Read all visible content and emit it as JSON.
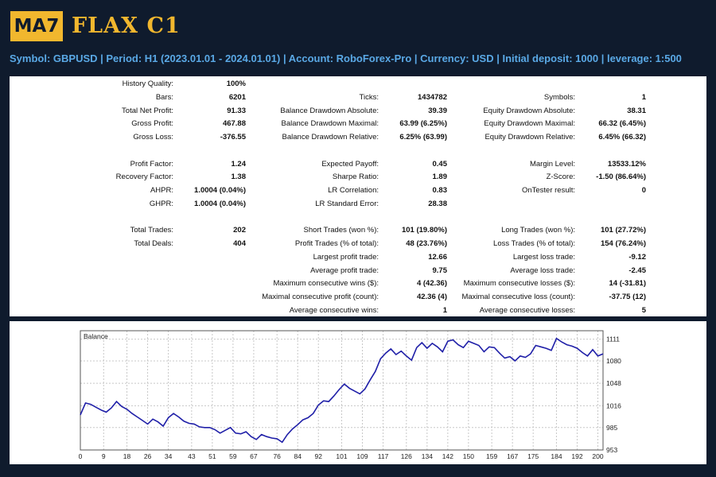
{
  "header": {
    "logo_badge": "MA7",
    "logo_text": "FLAX C1",
    "info_line": "Symbol: GBPUSD  |  Period: H1 (2023.01.01 - 2024.01.01)  |  Account: RoboForex-Pro  |  Currency: USD  | Initial deposit: 1000  |  leverage: 1:500"
  },
  "stats": {
    "c1": [
      {
        "label": "History Quality:",
        "value": "100%"
      },
      {
        "label": "Bars:",
        "value": "6201"
      },
      {
        "label": "Total Net Profit:",
        "value": "91.33"
      },
      {
        "label": "Gross Profit:",
        "value": "467.88"
      },
      {
        "label": "Gross Loss:",
        "value": "-376.55"
      },
      {
        "label": "Profit Factor:",
        "value": "1.24"
      },
      {
        "label": "Recovery Factor:",
        "value": "1.38"
      },
      {
        "label": "AHPR:",
        "value": "1.0004 (0.04%)"
      },
      {
        "label": "GHPR:",
        "value": "1.0004 (0.04%)"
      },
      {
        "label": "Total Trades:",
        "value": "202"
      },
      {
        "label": "Total Deals:",
        "value": "404"
      }
    ],
    "c2": [
      {
        "label": "Ticks:",
        "value": "1434782"
      },
      {
        "label": "Balance Drawdown Absolute:",
        "value": "39.39"
      },
      {
        "label": "Balance Drawdown Maximal:",
        "value": "63.99 (6.25%)"
      },
      {
        "label": "Balance Drawdown Relative:",
        "value": "6.25% (63.99)"
      },
      {
        "label": "Expected Payoff:",
        "value": "0.45"
      },
      {
        "label": "Sharpe Ratio:",
        "value": "1.89"
      },
      {
        "label": "LR Correlation:",
        "value": "0.83"
      },
      {
        "label": "LR Standard Error:",
        "value": "28.38"
      },
      {
        "label": "Short Trades (won %):",
        "value": "101 (19.80%)"
      },
      {
        "label": "Profit Trades (% of total):",
        "value": "48 (23.76%)"
      },
      {
        "label": "Largest profit trade:",
        "value": "12.66"
      },
      {
        "label": "Average profit trade:",
        "value": "9.75"
      },
      {
        "label": "Maximum consecutive wins ($):",
        "value": "4 (42.36)"
      },
      {
        "label": "Maximal consecutive profit (count):",
        "value": "42.36 (4)"
      },
      {
        "label": "Average consecutive wins:",
        "value": "1"
      }
    ],
    "c3": [
      {
        "label": "Symbols:",
        "value": "1"
      },
      {
        "label": "Equity Drawdown Absolute:",
        "value": "38.31"
      },
      {
        "label": "Equity Drawdown Maximal:",
        "value": "66.32 (6.45%)"
      },
      {
        "label": "Equity Drawdown Relative:",
        "value": "6.45% (66.32)"
      },
      {
        "label": "Margin Level:",
        "value": "13533.12%"
      },
      {
        "label": "Z-Score:",
        "value": "-1.50 (86.64%)"
      },
      {
        "label": "OnTester result:",
        "value": "0"
      },
      {
        "label": "Long Trades (won %):",
        "value": "101 (27.72%)"
      },
      {
        "label": "Loss Trades (% of total):",
        "value": "154 (76.24%)"
      },
      {
        "label": "Largest loss trade:",
        "value": "-9.12"
      },
      {
        "label": "Average loss trade:",
        "value": "-2.45"
      },
      {
        "label": "Maximum consecutive losses ($):",
        "value": "14 (-31.81)"
      },
      {
        "label": "Maximal consecutive loss (count):",
        "value": "-37.75 (12)"
      },
      {
        "label": "Average consecutive losses:",
        "value": "5"
      }
    ]
  },
  "chart_data": {
    "type": "line",
    "title": "Balance",
    "xlabel": "",
    "ylabel": "",
    "xlim": [
      0,
      202
    ],
    "ylim": [
      953,
      1123
    ],
    "x_ticks": [
      0,
      9,
      18,
      26,
      34,
      43,
      51,
      59,
      67,
      76,
      84,
      92,
      101,
      109,
      117,
      126,
      134,
      142,
      150,
      159,
      167,
      175,
      184,
      192,
      200
    ],
    "y_ticks": [
      953,
      985,
      1016,
      1048,
      1080,
      1111
    ],
    "grid": true,
    "color": "#1f1fa8",
    "series": [
      {
        "name": "",
        "x": [
          0,
          2,
          4,
          6,
          8,
          10,
          12,
          14,
          16,
          18,
          20,
          22,
          24,
          26,
          28,
          30,
          32,
          34,
          36,
          38,
          40,
          42,
          44,
          46,
          48,
          50,
          52,
          54,
          56,
          58,
          60,
          62,
          64,
          66,
          68,
          70,
          72,
          74,
          76,
          78,
          80,
          82,
          84,
          86,
          88,
          90,
          92,
          94,
          96,
          98,
          100,
          102,
          104,
          106,
          108,
          110,
          112,
          114,
          116,
          118,
          120,
          122,
          124,
          126,
          128,
          130,
          132,
          134,
          136,
          138,
          140,
          142,
          144,
          146,
          148,
          150,
          152,
          154,
          156,
          158,
          160,
          162,
          164,
          166,
          168,
          170,
          172,
          174,
          176,
          178,
          180,
          182,
          184,
          186,
          188,
          190,
          192,
          194,
          196,
          198,
          200,
          202
        ],
        "y": [
          1003,
          1020,
          1018,
          1014,
          1010,
          1007,
          1013,
          1022,
          1015,
          1011,
          1005,
          1000,
          995,
          990,
          997,
          993,
          987,
          999,
          1005,
          1000,
          994,
          991,
          990,
          986,
          985,
          985,
          982,
          977,
          981,
          985,
          977,
          976,
          979,
          972,
          968,
          975,
          972,
          970,
          969,
          964,
          975,
          983,
          989,
          996,
          999,
          1005,
          1017,
          1023,
          1022,
          1030,
          1039,
          1047,
          1041,
          1037,
          1033,
          1040,
          1053,
          1065,
          1083,
          1091,
          1097,
          1089,
          1094,
          1087,
          1081,
          1099,
          1106,
          1098,
          1105,
          1100,
          1093,
          1108,
          1110,
          1103,
          1099,
          1108,
          1105,
          1102,
          1093,
          1100,
          1099,
          1091,
          1084,
          1086,
          1080,
          1087,
          1085,
          1090,
          1102,
          1100,
          1098,
          1095,
          1112,
          1107,
          1103,
          1101,
          1098,
          1092,
          1087,
          1096,
          1087,
          1090
        ]
      }
    ]
  }
}
